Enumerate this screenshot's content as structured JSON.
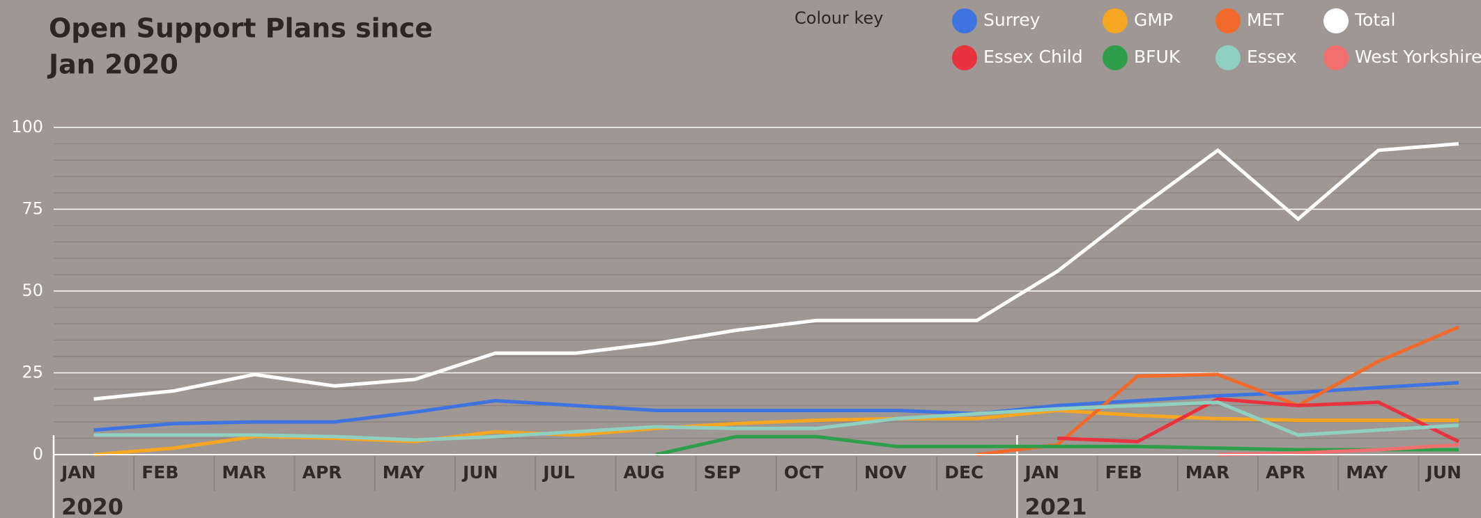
{
  "chart_data": {
    "type": "line",
    "title_lines": [
      "Open Support Plans since",
      "Jan 2020"
    ],
    "legend_title": "Colour key",
    "categories": [
      "JAN",
      "FEB",
      "MAR",
      "APR",
      "MAY",
      "JUN",
      "JUL",
      "AUG",
      "SEP",
      "OCT",
      "NOV",
      "DEC",
      "JAN",
      "FEB",
      "MAR",
      "APR",
      "MAY",
      "JUN"
    ],
    "year_labels": [
      "2020",
      "2021"
    ],
    "ylim": [
      0,
      100
    ],
    "yticks": [
      0,
      25,
      50,
      75,
      100
    ],
    "grid": true,
    "series": [
      {
        "name": "Surrey",
        "color": "#3f74e0",
        "values": [
          7.5,
          9.5,
          10,
          10,
          13,
          16.5,
          15,
          13.5,
          13.5,
          13.5,
          13.5,
          12.5,
          15,
          16.5,
          18,
          19,
          20.5,
          22
        ]
      },
      {
        "name": "GMP",
        "color": "#f5a623",
        "values": [
          0,
          2,
          5.5,
          5,
          4,
          7,
          6,
          8,
          9.5,
          10.5,
          11,
          11,
          13.5,
          12,
          11,
          10.5,
          10.5,
          10.5
        ]
      },
      {
        "name": "MET",
        "color": "#f26a2b",
        "values": [
          null,
          null,
          null,
          null,
          null,
          null,
          null,
          null,
          null,
          null,
          null,
          0,
          3,
          24,
          24.5,
          15,
          28.5,
          39
        ]
      },
      {
        "name": "Total",
        "color": "#ffffff",
        "values": [
          17,
          19.5,
          24.5,
          21,
          23,
          31,
          31,
          34,
          38,
          41,
          41,
          41,
          56,
          75,
          93,
          72,
          93,
          95
        ]
      },
      {
        "name": "Essex Child",
        "color": "#e8323d",
        "values": [
          null,
          null,
          null,
          null,
          null,
          null,
          null,
          null,
          null,
          null,
          null,
          null,
          5,
          4,
          17,
          15,
          16,
          4
        ]
      },
      {
        "name": "BFUK",
        "color": "#2e9e4a",
        "values": [
          null,
          null,
          null,
          null,
          null,
          null,
          null,
          0,
          5.5,
          5.5,
          2.5,
          2.5,
          2.5,
          2.5,
          2,
          1.5,
          1.5,
          1.5
        ]
      },
      {
        "name": "Essex",
        "color": "#8fd0c0",
        "values": [
          6,
          6,
          6,
          5.5,
          4.5,
          5.5,
          7,
          8.5,
          8,
          8,
          11,
          12.5,
          14,
          15,
          16,
          6,
          7.5,
          9
        ]
      },
      {
        "name": "West Yorkshire",
        "color": "#f07070",
        "values": [
          null,
          null,
          null,
          null,
          null,
          null,
          null,
          null,
          null,
          null,
          null,
          null,
          null,
          null,
          0,
          0.5,
          1.5,
          3
        ]
      }
    ]
  }
}
